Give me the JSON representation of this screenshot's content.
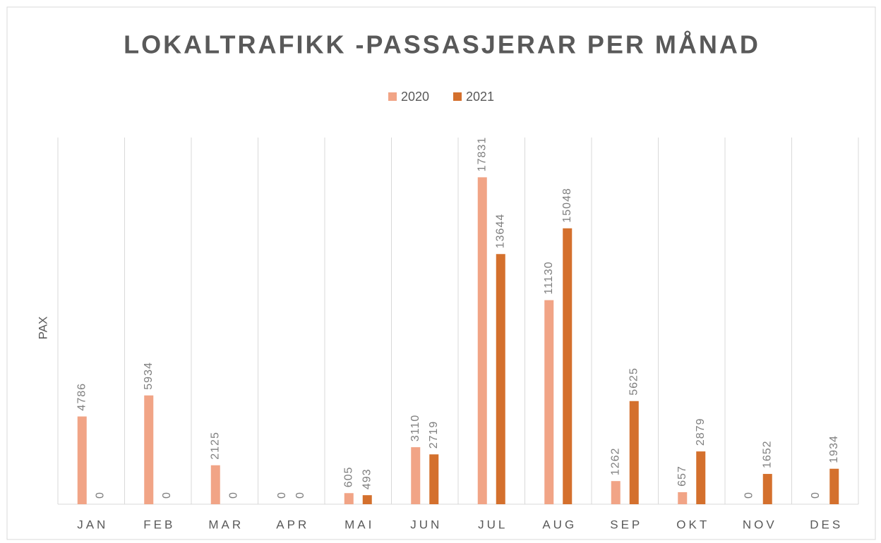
{
  "chart_data": {
    "type": "bar",
    "title": "LOKALTRAFIKK  -PASSASJERAR PER MÅNAD",
    "ylabel": "PAX",
    "categories": [
      "JAN",
      "FEB",
      "MAR",
      "APR",
      "MAI",
      "JUN",
      "JUL",
      "AUG",
      "SEP",
      "OKT",
      "NOV",
      "DES"
    ],
    "series": [
      {
        "name": "2020",
        "color": "#f1a486",
        "values": [
          4786,
          5934,
          2125,
          0,
          605,
          3110,
          17831,
          11130,
          1262,
          657,
          0,
          0
        ]
      },
      {
        "name": "2021",
        "color": "#d4702d",
        "values": [
          0,
          0,
          0,
          0,
          493,
          2719,
          13644,
          15048,
          5625,
          2879,
          1652,
          1934
        ]
      }
    ],
    "ylim": [
      0,
      20000
    ],
    "legend": "top"
  }
}
